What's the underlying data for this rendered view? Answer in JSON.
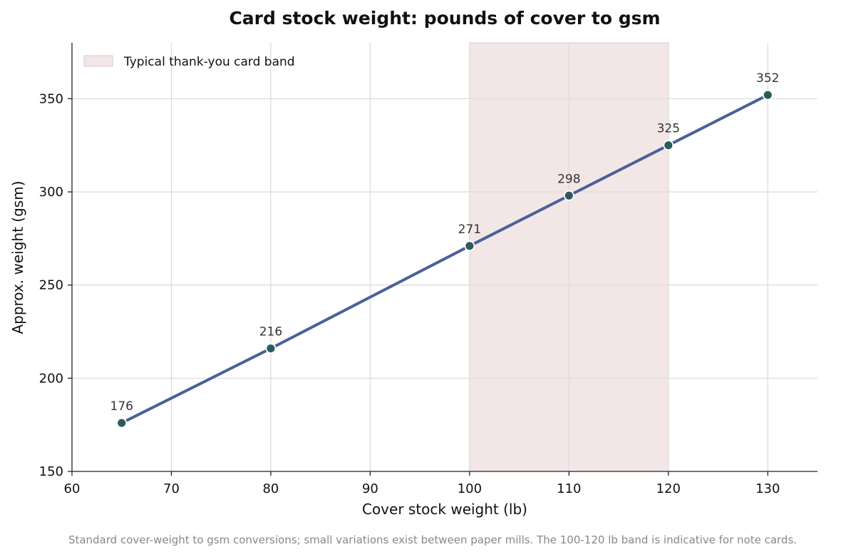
{
  "chart_data": {
    "type": "line",
    "title": "Card stock weight: pounds of cover to gsm",
    "xlabel": "Cover stock weight (lb)",
    "ylabel": "Approx. weight (gsm)",
    "xlim": [
      60,
      135
    ],
    "ylim": [
      150,
      380
    ],
    "x_ticks": [
      60,
      70,
      80,
      90,
      100,
      110,
      120,
      130
    ],
    "y_ticks": [
      150,
      200,
      250,
      300,
      350
    ],
    "grid": true,
    "series": [
      {
        "x": [
          65,
          80,
          100,
          110,
          120,
          130
        ],
        "values": [
          176,
          216,
          271,
          298,
          325,
          352
        ],
        "data_labels": [
          "176",
          "216",
          "271",
          "298",
          "325",
          "352"
        ]
      }
    ],
    "band": {
      "label": "Typical thank-you card band",
      "x_start": 100,
      "x_end": 120
    },
    "legend_position": "top-left",
    "caption": "Standard cover-weight to gsm conversions; small variations exist between paper mills. The 100-120 lb band is indicative for note cards.",
    "colors": {
      "line": "#4a6198",
      "marker": "#2e5b5a",
      "band": "#f3e6e7",
      "band_edge": "#d9c8cb",
      "grid": "#dddddd"
    }
  }
}
